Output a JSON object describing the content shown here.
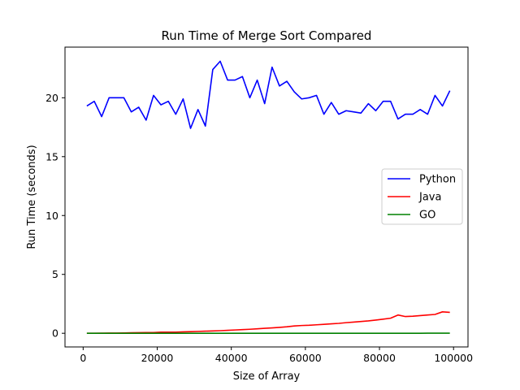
{
  "chart_data": {
    "type": "line",
    "title": "Run Time of Merge Sort Compared",
    "xlabel": "Size of Array",
    "ylabel": "Run Time (seconds)",
    "xlim": [
      -4900,
      103900
    ],
    "ylim": [
      -1.16,
      24.3
    ],
    "xticks": [
      0,
      20000,
      40000,
      60000,
      80000,
      100000
    ],
    "xtick_labels": [
      "0",
      "20000",
      "40000",
      "60000",
      "80000",
      "100000"
    ],
    "yticks": [
      0,
      5,
      10,
      15,
      20
    ],
    "ytick_labels": [
      "0",
      "5",
      "10",
      "15",
      "20"
    ],
    "grid": false,
    "legend_position": "center-right",
    "x": [
      1000,
      3000,
      5000,
      7000,
      9000,
      11000,
      13000,
      15000,
      17000,
      19000,
      21000,
      23000,
      25000,
      27000,
      29000,
      31000,
      33000,
      35000,
      37000,
      39000,
      41000,
      43000,
      45000,
      47000,
      49000,
      51000,
      53000,
      55000,
      57000,
      59000,
      61000,
      63000,
      65000,
      67000,
      69000,
      71000,
      73000,
      75000,
      77000,
      79000,
      81000,
      83000,
      85000,
      87000,
      89000,
      91000,
      93000,
      95000,
      97000,
      99000
    ],
    "series": [
      {
        "name": "Python",
        "color": "#0000ff",
        "values": [
          19.3,
          19.7,
          18.4,
          20.0,
          20.0,
          20.0,
          18.8,
          19.2,
          18.1,
          20.2,
          19.4,
          19.7,
          18.6,
          19.9,
          17.4,
          19.0,
          17.6,
          22.4,
          23.1,
          21.5,
          21.5,
          21.8,
          20.0,
          21.5,
          19.5,
          22.6,
          21.0,
          21.4,
          20.5,
          19.9,
          20.0,
          20.2,
          18.6,
          19.6,
          18.6,
          18.9,
          18.8,
          18.7,
          19.5,
          18.9,
          19.7,
          19.7,
          18.2,
          18.6,
          18.6,
          19.0,
          18.6,
          20.2,
          19.3,
          20.6
        ]
      },
      {
        "name": "Java",
        "color": "#ff0000",
        "values": [
          0.0,
          0.0,
          0.01,
          0.02,
          0.02,
          0.03,
          0.04,
          0.05,
          0.06,
          0.06,
          0.1,
          0.1,
          0.1,
          0.12,
          0.14,
          0.16,
          0.18,
          0.2,
          0.22,
          0.25,
          0.28,
          0.31,
          0.34,
          0.38,
          0.42,
          0.46,
          0.5,
          0.55,
          0.62,
          0.66,
          0.68,
          0.72,
          0.76,
          0.8,
          0.84,
          0.9,
          0.95,
          1.0,
          1.05,
          1.12,
          1.2,
          1.28,
          1.55,
          1.42,
          1.45,
          1.5,
          1.55,
          1.6,
          1.82,
          1.78
        ]
      },
      {
        "name": "GO",
        "color": "#008000",
        "values": [
          0.0,
          0.0,
          0.0,
          0.0,
          0.0,
          0.0,
          0.0,
          0.0,
          0.0,
          0.0,
          0.0,
          0.0,
          0.0,
          0.0,
          0.0,
          0.0,
          0.0,
          0.0,
          0.0,
          0.0,
          0.0,
          0.0,
          0.0,
          0.0,
          0.0,
          0.0,
          0.0,
          0.0,
          0.0,
          0.0,
          0.0,
          0.0,
          0.0,
          0.0,
          0.0,
          0.0,
          0.0,
          0.0,
          0.0,
          0.0,
          0.0,
          0.0,
          0.0,
          0.0,
          0.0,
          0.0,
          0.01,
          0.01,
          0.01,
          0.01
        ]
      }
    ]
  }
}
